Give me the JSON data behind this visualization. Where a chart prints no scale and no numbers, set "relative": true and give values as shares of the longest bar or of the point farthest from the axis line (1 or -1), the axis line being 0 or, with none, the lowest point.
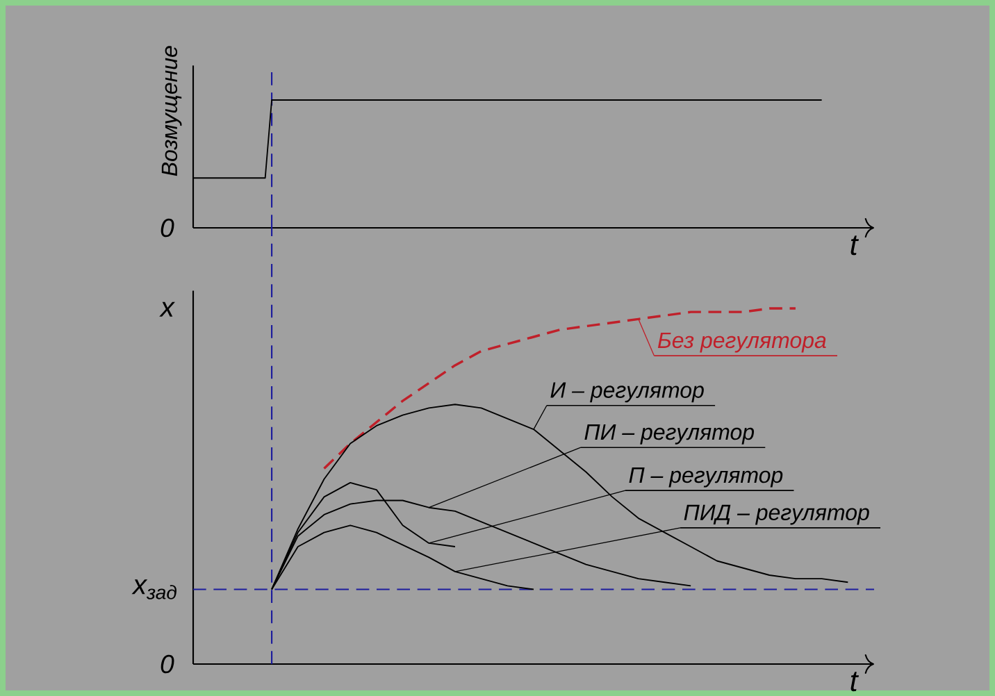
{
  "chart_data": [
    {
      "type": "line",
      "ylabel": "Возмущение",
      "xlabel": "t",
      "relative": true,
      "categories": [
        null,
        null,
        null,
        null,
        null,
        null,
        null,
        null,
        null,
        null,
        null,
        null,
        null,
        null,
        null,
        null,
        null,
        null,
        null,
        null,
        null,
        null,
        null,
        null,
        null,
        null,
        null,
        null,
        null,
        null,
        null,
        null,
        null,
        null,
        null,
        null,
        null,
        null,
        null,
        null,
        null,
        null,
        null,
        null,
        null,
        null,
        null,
        null,
        null,
        null,
        null,
        null,
        null,
        null,
        null,
        null,
        null,
        null,
        null,
        null,
        null,
        null,
        null,
        null,
        null,
        null,
        null,
        null,
        null,
        null,
        null,
        null,
        null,
        null,
        null,
        null,
        null,
        null,
        null,
        null,
        null,
        null,
        null,
        null,
        null,
        null,
        null,
        null,
        null,
        null,
        null,
        null,
        null,
        null,
        null,
        null,
        null,
        null,
        null,
        null,
        null,
        null,
        null,
        null,
        null
      ],
      "series": [
        {
          "color": "#000000",
          "values": [
            0.39,
            0.39,
            0.39,
            0.39,
            0.39,
            0.39,
            0.39,
            0.39,
            0.39,
            0.39,
            0.39,
            0.39,
            1,
            1,
            1,
            1,
            1,
            1,
            1,
            1,
            1,
            1,
            1,
            1,
            1,
            1,
            1,
            1,
            1,
            1,
            1,
            1,
            1,
            1,
            1,
            1,
            1,
            1,
            1,
            1,
            1,
            1,
            1,
            1,
            1,
            1,
            1,
            1,
            1,
            1,
            1,
            1,
            1,
            1,
            1,
            1,
            1,
            1,
            1,
            1,
            1,
            1,
            1,
            1,
            1,
            1,
            1,
            1,
            1,
            1,
            1,
            1,
            1,
            1,
            1,
            1,
            1,
            1,
            1,
            1,
            1,
            1,
            1,
            1,
            1,
            1,
            1,
            1,
            1,
            1,
            1,
            1,
            1,
            1,
            1,
            1,
            1,
            null,
            null,
            null,
            null,
            null,
            null,
            null,
            null
          ]
        }
      ],
      "annotations": [
        "0"
      ]
    },
    {
      "type": "line",
      "ylabel": "x",
      "xlabel": "t",
      "relative": true,
      "categories": [
        null,
        null,
        null,
        null,
        null,
        null,
        null,
        null,
        null,
        null,
        null,
        null,
        null,
        null,
        null,
        null,
        null,
        null,
        null,
        null,
        null,
        null,
        null,
        null,
        null,
        null,
        null
      ],
      "series": [
        {
          "name": "Без регулятора",
          "color": "#c0202a",
          "line_style": "dashed",
          "values": [
            null,
            null,
            null,
            null,
            null,
            0.55,
            0.62,
            0.68,
            0.74,
            0.79,
            0.84,
            0.88,
            0.9,
            0.92,
            0.94,
            0.95,
            0.96,
            0.97,
            0.98,
            0.99,
            0.99,
            0.99,
            1.0,
            1.0,
            null,
            null,
            null
          ]
        },
        {
          "name": "И – регулятор",
          "color": "#000000",
          "values": [
            null,
            null,
            null,
            0.21,
            0.38,
            0.52,
            0.62,
            0.67,
            0.7,
            0.72,
            0.73,
            0.72,
            0.69,
            0.66,
            0.6,
            0.54,
            0.47,
            0.41,
            0.37,
            0.33,
            0.29,
            0.27,
            0.25,
            0.24,
            0.24,
            0.23,
            null
          ]
        },
        {
          "name": "ПИ – регулятор",
          "color": "#000000",
          "values": [
            null,
            null,
            null,
            0.21,
            0.36,
            0.42,
            0.45,
            0.46,
            0.46,
            0.44,
            0.43,
            0.4,
            0.37,
            0.34,
            0.31,
            0.28,
            0.26,
            0.24,
            0.23,
            0.22,
            null,
            null,
            null,
            null,
            null,
            null,
            null
          ]
        },
        {
          "name": "П – регулятор",
          "color": "#000000",
          "values": [
            null,
            null,
            null,
            0.21,
            0.37,
            0.47,
            0.51,
            0.49,
            0.39,
            0.34,
            0.33,
            null,
            null,
            null,
            null,
            null,
            null,
            null,
            null,
            null,
            null,
            null,
            null,
            null,
            null,
            null,
            null
          ]
        },
        {
          "name": "ПИД – регулятор",
          "color": "#000000",
          "values": [
            null,
            null,
            null,
            0.21,
            0.33,
            0.37,
            0.39,
            0.37,
            0.335,
            0.3,
            0.26,
            0.24,
            0.22,
            0.21,
            null,
            null,
            null,
            null,
            null,
            null,
            null,
            null,
            null,
            null,
            null,
            null,
            null
          ]
        }
      ],
      "ref_lines": [
        {
          "axis": "y",
          "value": 0.21,
          "label": "x$_{зад}$",
          "color": "#1c1c9c",
          "line_style": "dashed"
        }
      ],
      "annotations": [
        "0"
      ]
    }
  ]
}
